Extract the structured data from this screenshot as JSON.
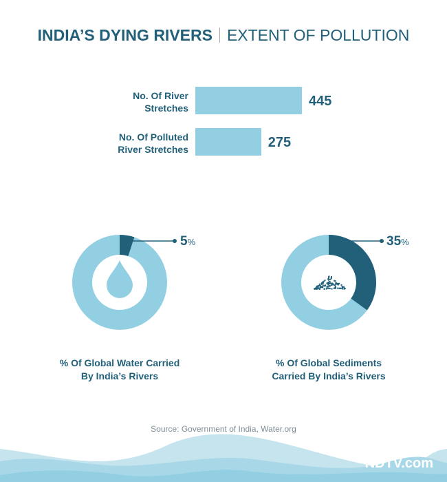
{
  "title": {
    "bold": "INDIA’S DYING RIVERS",
    "light": "EXTENT OF POLLUTION"
  },
  "chart_data": [
    {
      "type": "bar",
      "orientation": "horizontal",
      "categories": [
        "No. Of River Stretches",
        "No. Of Polluted River Stretches"
      ],
      "values": [
        445,
        275
      ],
      "value_labels": [
        "445",
        "275"
      ],
      "color": "#92cfe2"
    },
    {
      "type": "pie",
      "variant": "donut",
      "label": "% Of Global Water Carried By India’s Rivers",
      "value": 5,
      "value_label": "5",
      "unit": "%",
      "icon": "water-drop-icon",
      "colors": {
        "highlight": "#22607a",
        "rest": "#92cfe2"
      }
    },
    {
      "type": "pie",
      "variant": "donut",
      "label": "% Of Global Sediments Carried By India’s Rivers",
      "value": 35,
      "value_label": "35",
      "unit": "%",
      "icon": "sediment-pile-icon",
      "colors": {
        "highlight": "#22607a",
        "rest": "#92cfe2"
      }
    }
  ],
  "bar_labels": [
    [
      "No. Of River",
      "Stretches"
    ],
    [
      "No. Of Polluted",
      "River Stretches"
    ]
  ],
  "donut_labels": [
    [
      "% Of Global Water Carried",
      "By India’s Rivers"
    ],
    [
      "% Of Global Sediments",
      "Carried By India’s Rivers"
    ]
  ],
  "source": "Source: Government of India, Water.org",
  "logo": "NDTV.com"
}
